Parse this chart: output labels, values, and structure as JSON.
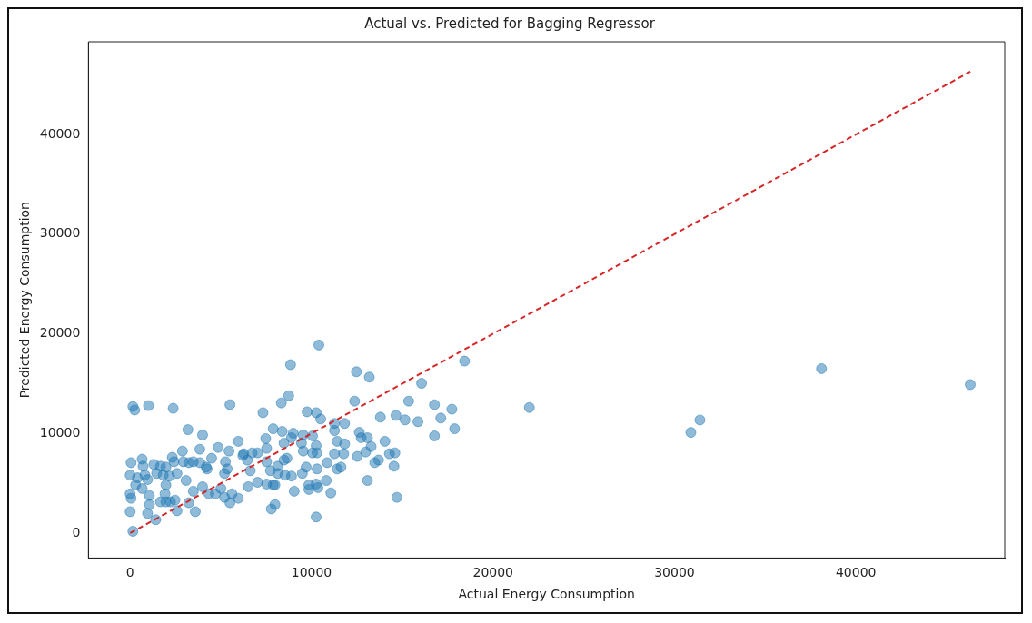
{
  "chart_data": {
    "type": "scatter",
    "title": "Actual vs. Predicted for Bagging Regressor",
    "xlabel": "Actual Energy Consumption",
    "ylabel": "Predicted Energy Consumption",
    "xlim": [
      -2300,
      48200
    ],
    "ylim": [
      -2500,
      49300
    ],
    "xticks": [
      0,
      10000,
      20000,
      30000,
      40000
    ],
    "yticks": [
      0,
      10000,
      20000,
      30000,
      40000
    ],
    "grid": false,
    "legend": false,
    "marker": "circle",
    "series": [
      {
        "color": "#1f77b4",
        "x": [
          150,
          250,
          1010,
          2370,
          5500,
          7320,
          8330,
          8840,
          8740,
          3180,
          3990,
          5960,
          7470,
          7880,
          8380,
          2880,
          3840,
          4850,
          5450,
          6260,
          6720,
          7020,
          7520,
          50,
          660,
          710,
          1310,
          1670,
          2320,
          2420,
          1970,
          2930,
          3230,
          3480,
          3840,
          4190,
          4490,
          4240,
          5250,
          5350,
          5200,
          6210,
          6460,
          6620,
          7520,
          7730,
          8130,
          8480,
          8530,
          0,
          400,
          810,
          300,
          660,
          960,
          1460,
          1820,
          2170,
          2580,
          1970,
          0,
          50,
          1060,
          1920,
          1970,
          2220,
          2470,
          3080,
          3480,
          3990,
          4340,
          4700,
          5000,
          5200,
          5610,
          5960,
          5500,
          6510,
          7020,
          7520,
          7980,
          1060,
          1670,
          2580,
          3230,
          3590,
          0,
          960,
          1410,
          7980,
          7780,
          150,
          12470,
          13180,
          16060,
          18430,
          12370,
          15350,
          16770,
          17730,
          9750,
          10250,
          10500,
          13790,
          14650,
          15150,
          15860,
          17120,
          17880,
          16770,
          11260,
          11820,
          8990,
          9540,
          10050,
          11260,
          12630,
          13080,
          14040,
          8890,
          8480,
          9440,
          10250,
          11410,
          11820,
          12730,
          13280,
          9540,
          10050,
          10300,
          11260,
          11770,
          12520,
          12980,
          13480,
          13690,
          14290,
          14590,
          14540,
          8640,
          8130,
          7880,
          8890,
          9490,
          9700,
          10300,
          10860,
          11410,
          11620,
          10810,
          9850,
          9850,
          10250,
          10350,
          9040,
          11060,
          13080,
          14700,
          10250,
          10400,
          46300,
          38100,
          31400,
          30900,
          22000
        ],
        "values": [
          12700,
          12350,
          12790,
          12520,
          12880,
          12080,
          13060,
          16900,
          13780,
          10380,
          9840,
          9210,
          9480,
          10470,
          10200,
          8230,
          8410,
          8590,
          8230,
          7960,
          8050,
          8050,
          8500,
          7070,
          7420,
          6710,
          6890,
          6710,
          7600,
          7160,
          6620,
          7160,
          7070,
          7160,
          7070,
          6620,
          7510,
          6440,
          7160,
          6440,
          5990,
          7780,
          7330,
          6260,
          7160,
          6260,
          6710,
          7330,
          5810,
          5810,
          5550,
          5810,
          4830,
          4470,
          5370,
          5990,
          5810,
          5720,
          5990,
          4830,
          3940,
          3490,
          3760,
          3940,
          3130,
          3130,
          3310,
          5280,
          4200,
          4650,
          3940,
          3940,
          4470,
          3580,
          3940,
          3490,
          3040,
          4650,
          5100,
          4920,
          4830,
          2860,
          3130,
          2240,
          3040,
          2150,
          2150,
          1970,
          1340,
          2860,
          2420,
          180,
          16190,
          15650,
          15030,
          17260,
          13240,
          13240,
          12880,
          12430,
          12170,
          12080,
          11450,
          11630,
          11810,
          11360,
          11180,
          11540,
          10470,
          9750,
          11000,
          11000,
          10020,
          9840,
          9750,
          10290,
          10110,
          9570,
          9210,
          9570,
          9030,
          9030,
          8770,
          9210,
          8950,
          9570,
          8680,
          8230,
          8050,
          8050,
          7960,
          7960,
          7690,
          8140,
          7070,
          7330,
          7960,
          8050,
          6710,
          7510,
          5990,
          4830,
          5720,
          5990,
          6620,
          6440,
          7070,
          6440,
          6620,
          5280,
          4830,
          4380,
          4920,
          4560,
          4200,
          4030,
          5280,
          3580,
          1610,
          18870,
          14900,
          16500,
          11350,
          10100,
          12600
        ]
      },
      {
        "type": "line",
        "color": "#d62728",
        "line_style": "dashed",
        "marker": "none",
        "x": [
          0,
          46300
        ],
        "values": [
          0,
          46300
        ]
      }
    ]
  }
}
